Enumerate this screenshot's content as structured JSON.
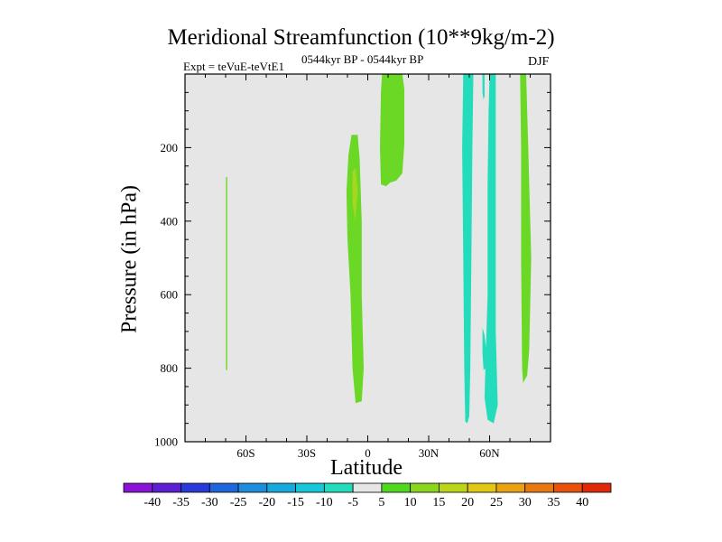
{
  "chart_data": {
    "type": "contour",
    "title": "Meridional Streamfunction (10**9kg/m-2)",
    "experiment_label": "Expt = teVuE-teVtE1",
    "period_label": "0544kyr BP - 0544kyr BP",
    "season_label": "DJF",
    "xlabel": "Latitude",
    "ylabel": "Pressure (in hPa)",
    "x_range": [
      -90,
      90
    ],
    "y_range": [
      1000,
      0
    ],
    "x_ticks": [
      {
        "value": -60,
        "label": "60S"
      },
      {
        "value": -30,
        "label": "30S"
      },
      {
        "value": 0,
        "label": "0"
      },
      {
        "value": 30,
        "label": "30N"
      },
      {
        "value": 60,
        "label": "60N"
      }
    ],
    "y_ticks": [
      {
        "value": 200,
        "label": "200"
      },
      {
        "value": 400,
        "label": "400"
      },
      {
        "value": 600,
        "label": "600"
      },
      {
        "value": 800,
        "label": "800"
      },
      {
        "value": 1000,
        "label": "1000"
      }
    ],
    "background_color": "#e6e6e6",
    "colorbar": {
      "levels": [
        "-40",
        "-35",
        "-30",
        "-25",
        "-20",
        "-15",
        "-10",
        "-5",
        "5",
        "10",
        "15",
        "20",
        "25",
        "30",
        "35",
        "40"
      ],
      "colors": [
        "#8a13d8",
        "#5c1fd4",
        "#2a3ad9",
        "#1e66db",
        "#1d8ddc",
        "#18a9dc",
        "#16c8d7",
        "#22dcbb",
        "#e6e6e6",
        "#50d81e",
        "#8ad61c",
        "#bcd51a",
        "#e2c714",
        "#e8a212",
        "#e8790f",
        "#e8520c",
        "#e0280a"
      ]
    },
    "regions": [
      {
        "value": 5,
        "color": "#6ad824",
        "points": [
          [
            -69.8,
            280
          ],
          [
            -69.2,
            280
          ],
          [
            -69.2,
            805
          ],
          [
            -69.8,
            805
          ]
        ]
      },
      {
        "value": 5,
        "color": "#6ad824",
        "points": [
          [
            -8,
            165
          ],
          [
            -5,
            165
          ],
          [
            -4,
            230
          ],
          [
            -3,
            400
          ],
          [
            -3,
            600
          ],
          [
            -2,
            800
          ],
          [
            -3,
            890
          ],
          [
            -6,
            895
          ],
          [
            -7.5,
            800
          ],
          [
            -8.5,
            600
          ],
          [
            -10,
            450
          ],
          [
            -10.5,
            320
          ],
          [
            -9.5,
            220
          ]
        ]
      },
      {
        "value": 10,
        "color": "#a6d71f",
        "points": [
          [
            -7.5,
            265
          ],
          [
            -6,
            255
          ],
          [
            -5,
            320
          ],
          [
            -6.2,
            400
          ],
          [
            -7.5,
            350
          ]
        ]
      },
      {
        "value": 5,
        "color": "#6ad824",
        "points": [
          [
            7,
            0
          ],
          [
            17,
            0
          ],
          [
            18,
            40
          ],
          [
            18,
            190
          ],
          [
            17,
            270
          ],
          [
            14,
            290
          ],
          [
            11,
            295
          ],
          [
            9,
            305
          ],
          [
            6.5,
            300
          ],
          [
            6,
            200
          ],
          [
            6.5,
            50
          ]
        ]
      },
      {
        "value": -5,
        "color": "#22dcbb",
        "points": [
          [
            47,
            0
          ],
          [
            52,
            0
          ],
          [
            51.5,
            200
          ],
          [
            51,
            500
          ],
          [
            50.5,
            800
          ],
          [
            50,
            930
          ],
          [
            49,
            950
          ],
          [
            48,
            945
          ],
          [
            47.5,
            800
          ],
          [
            47,
            500
          ],
          [
            46.5,
            200
          ]
        ]
      },
      {
        "value": -5,
        "color": "#22dcbb",
        "points": [
          [
            60,
            0
          ],
          [
            63,
            0
          ],
          [
            63,
            100
          ],
          [
            63,
            400
          ],
          [
            63,
            700
          ],
          [
            64,
            900
          ],
          [
            62,
            950
          ],
          [
            59,
            940
          ],
          [
            57.5,
            880
          ],
          [
            58,
            780
          ],
          [
            59,
            600
          ],
          [
            59,
            300
          ],
          [
            59.5,
            100
          ]
        ]
      },
      {
        "value": -5,
        "color": "#22dcbb",
        "points": [
          [
            56.5,
            0
          ],
          [
            57.5,
            0
          ],
          [
            57.5,
            60
          ],
          [
            57,
            70
          ],
          [
            56.5,
            50
          ]
        ]
      },
      {
        "value": -5,
        "color": "#22dcbb",
        "points": [
          [
            56.5,
            690
          ],
          [
            57.5,
            710
          ],
          [
            58.5,
            760
          ],
          [
            58,
            800
          ],
          [
            57,
            805
          ],
          [
            56.5,
            760
          ]
        ]
      },
      {
        "value": 5,
        "color": "#6ad824",
        "points": [
          [
            75,
            0
          ],
          [
            78,
            0
          ],
          [
            79,
            200
          ],
          [
            80.5,
            500
          ],
          [
            79.5,
            750
          ],
          [
            78.5,
            820
          ],
          [
            76.5,
            840
          ],
          [
            76,
            800
          ],
          [
            75.5,
            500
          ],
          [
            75.5,
            200
          ]
        ]
      }
    ]
  }
}
